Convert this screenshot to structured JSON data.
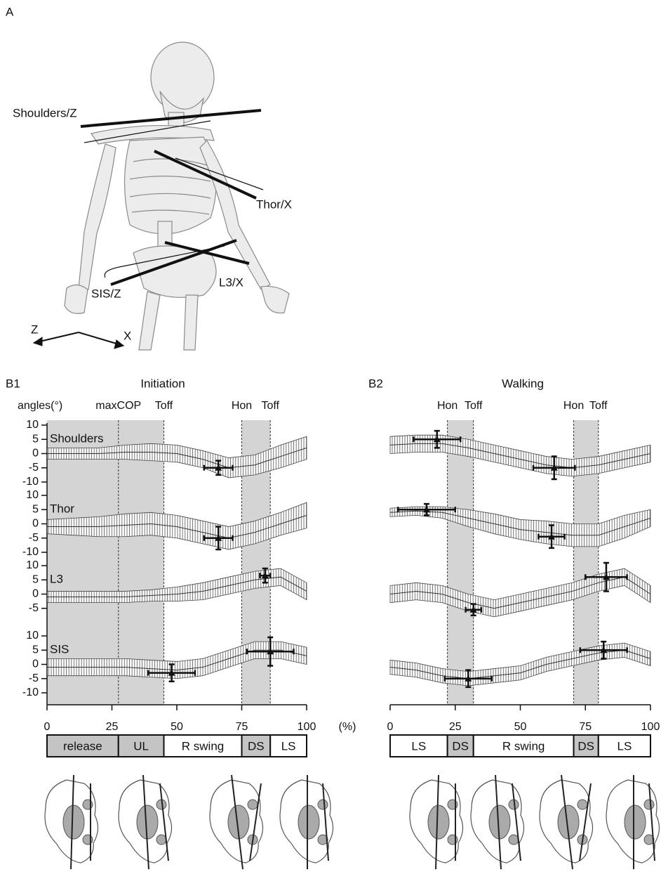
{
  "panel_a": {
    "label": "A",
    "labels": [
      "Shoulders/Z",
      "Thor/X",
      "L3/X",
      "SIS/Z"
    ],
    "axes": [
      "Z",
      "X"
    ]
  },
  "chart_data": [
    {
      "type": "line",
      "panel": "B1",
      "title": "Initiation",
      "y_label": "angles(°)",
      "x_unit": "(%)",
      "xlim": [
        0,
        100
      ],
      "xticks": [
        0,
        25,
        50,
        75,
        100
      ],
      "events": [
        {
          "label": "maxCOP",
          "x": 27.5
        },
        {
          "label": "Toff",
          "x": 45
        },
        {
          "label": "Hon",
          "x": 75
        },
        {
          "label": "Toff",
          "x": 86
        }
      ],
      "shaded": [
        [
          0,
          45
        ],
        [
          75,
          86
        ]
      ],
      "phases": [
        {
          "label": "release",
          "x": [
            0,
            27.5
          ],
          "shaded": true
        },
        {
          "label": "UL",
          "x": [
            27.5,
            45
          ],
          "shaded": true
        },
        {
          "label": "R swing",
          "x": [
            45,
            75
          ],
          "shaded": false
        },
        {
          "label": "DS",
          "x": [
            75,
            86
          ],
          "shaded": true
        },
        {
          "label": "LS",
          "x": [
            86,
            100
          ],
          "shaded": false
        }
      ],
      "x": [
        0,
        10,
        20,
        30,
        40,
        50,
        60,
        70,
        80,
        90,
        100
      ],
      "series": [
        {
          "name": "Shoulders",
          "ylim": [
            -10,
            10
          ],
          "yticks": [
            10,
            5,
            0,
            -5,
            -10
          ],
          "values": [
            0,
            0,
            0,
            0.5,
            0.5,
            0,
            -2,
            -5,
            -4,
            -1,
            2
          ],
          "sd": [
            2,
            2,
            2,
            2.5,
            3,
            3,
            3,
            3.5,
            3.5,
            4,
            4
          ],
          "markers": [
            {
              "x": 66,
              "y": -5,
              "xerr": 5.5,
              "yerr": 2.5
            }
          ]
        },
        {
          "name": "Thor",
          "ylim": [
            -10,
            10
          ],
          "yticks": [
            10,
            5,
            0,
            -5,
            -10
          ],
          "values": [
            -1,
            -1,
            -1,
            -0.5,
            0,
            -1,
            -3,
            -5,
            -3,
            0,
            3
          ],
          "sd": [
            2.5,
            3,
            3.5,
            4,
            4,
            4,
            4,
            4,
            4,
            4,
            4.5
          ],
          "markers": [
            {
              "x": 66,
              "y": -5,
              "xerr": 5.5,
              "yerr": 4
            }
          ]
        },
        {
          "name": "L3",
          "ylim": [
            -10,
            10
          ],
          "yticks": [
            10,
            5,
            0,
            -5
          ],
          "values": [
            -1,
            -1,
            -1,
            -1,
            -0.5,
            0,
            1,
            3,
            5,
            6,
            1
          ],
          "sd": [
            2,
            2,
            2,
            2,
            2,
            2.5,
            3,
            3,
            3,
            3,
            3
          ],
          "markers": [
            {
              "x": 84,
              "y": 6.5,
              "xerr": 2,
              "yerr": 2.5
            }
          ]
        },
        {
          "name": "SIS",
          "ylim": [
            -10,
            10
          ],
          "yticks": [
            10,
            5,
            0,
            -5,
            -10
          ],
          "values": [
            -1,
            -1,
            -1,
            -1,
            -1.5,
            -2,
            -1,
            2,
            5,
            5,
            3
          ],
          "sd": [
            3,
            3,
            3,
            3,
            3,
            3,
            3,
            3,
            3,
            3,
            3
          ],
          "markers": [
            {
              "x": 48,
              "y": -3,
              "xerr": 9,
              "yerr": 3
            },
            {
              "x": 86,
              "y": 4.5,
              "xerr": 9,
              "yerr": 5
            }
          ]
        }
      ]
    },
    {
      "type": "line",
      "panel": "B2",
      "title": "Walking",
      "x_unit": null,
      "xlim": [
        0,
        100
      ],
      "xticks": [
        0,
        25,
        50,
        75,
        100
      ],
      "events": [
        {
          "label": "Hon",
          "x": 22
        },
        {
          "label": "Toff",
          "x": 32
        },
        {
          "label": "Hon",
          "x": 70.5
        },
        {
          "label": "Toff",
          "x": 80
        }
      ],
      "shaded": [
        [
          22,
          32
        ],
        [
          70.5,
          80
        ]
      ],
      "phases": [
        {
          "label": "LS",
          "x": [
            0,
            22
          ],
          "shaded": false
        },
        {
          "label": "DS",
          "x": [
            22,
            32
          ],
          "shaded": true
        },
        {
          "label": "R swing",
          "x": [
            32,
            70.5
          ],
          "shaded": false
        },
        {
          "label": "DS",
          "x": [
            70.5,
            80
          ],
          "shaded": true
        },
        {
          "label": "LS",
          "x": [
            80,
            100
          ],
          "shaded": false
        }
      ],
      "x": [
        0,
        10,
        20,
        30,
        40,
        50,
        60,
        70,
        80,
        90,
        100
      ],
      "series": [
        {
          "name": "Shoulders",
          "ylim": [
            -10,
            10
          ],
          "values": [
            3,
            3.5,
            3.5,
            2,
            0,
            -2,
            -4,
            -5,
            -4,
            -2,
            0
          ],
          "sd": [
            3,
            3,
            3,
            3,
            3,
            3,
            3,
            3,
            3,
            3,
            3
          ],
          "markers": [
            {
              "x": 18,
              "y": 5,
              "xerr": 9,
              "yerr": 3
            },
            {
              "x": 63,
              "y": -5,
              "xerr": 8,
              "yerr": 4
            }
          ]
        },
        {
          "name": "Thor",
          "ylim": [
            -10,
            10
          ],
          "values": [
            4,
            4.5,
            4,
            2,
            0,
            -2,
            -3,
            -4,
            -4,
            -1,
            2
          ],
          "sd": [
            1.5,
            1.5,
            2,
            3,
            3.5,
            3.5,
            4,
            4,
            4,
            4,
            3
          ],
          "markers": [
            {
              "x": 14,
              "y": 5,
              "xerr": 11,
              "yerr": 2
            },
            {
              "x": 62,
              "y": -4.5,
              "xerr": 5,
              "yerr": 4
            }
          ]
        },
        {
          "name": "L3",
          "ylim": [
            -10,
            10
          ],
          "values": [
            0,
            1,
            0,
            -3,
            -5,
            -3,
            -1,
            1,
            4,
            6,
            0
          ],
          "sd": [
            3,
            3,
            3,
            3,
            3,
            3,
            3,
            3,
            3,
            3,
            3
          ],
          "markers": [
            {
              "x": 32,
              "y": -5.5,
              "xerr": 3,
              "yerr": 2
            },
            {
              "x": 83,
              "y": 6,
              "xerr": 8,
              "yerr": 5
            }
          ]
        },
        {
          "name": "SIS",
          "ylim": [
            -10,
            10
          ],
          "values": [
            -1,
            -2,
            -4,
            -5,
            -4,
            -3,
            0,
            2,
            4,
            5,
            2
          ],
          "sd": [
            2.5,
            2.5,
            2.5,
            2.5,
            2.5,
            2.5,
            2.5,
            2.5,
            2.5,
            2.5,
            2.5
          ],
          "markers": [
            {
              "x": 30,
              "y": -5,
              "xerr": 9,
              "yerr": 3
            },
            {
              "x": 82,
              "y": 5,
              "xerr": 9,
              "yerr": 3
            }
          ]
        }
      ]
    }
  ]
}
